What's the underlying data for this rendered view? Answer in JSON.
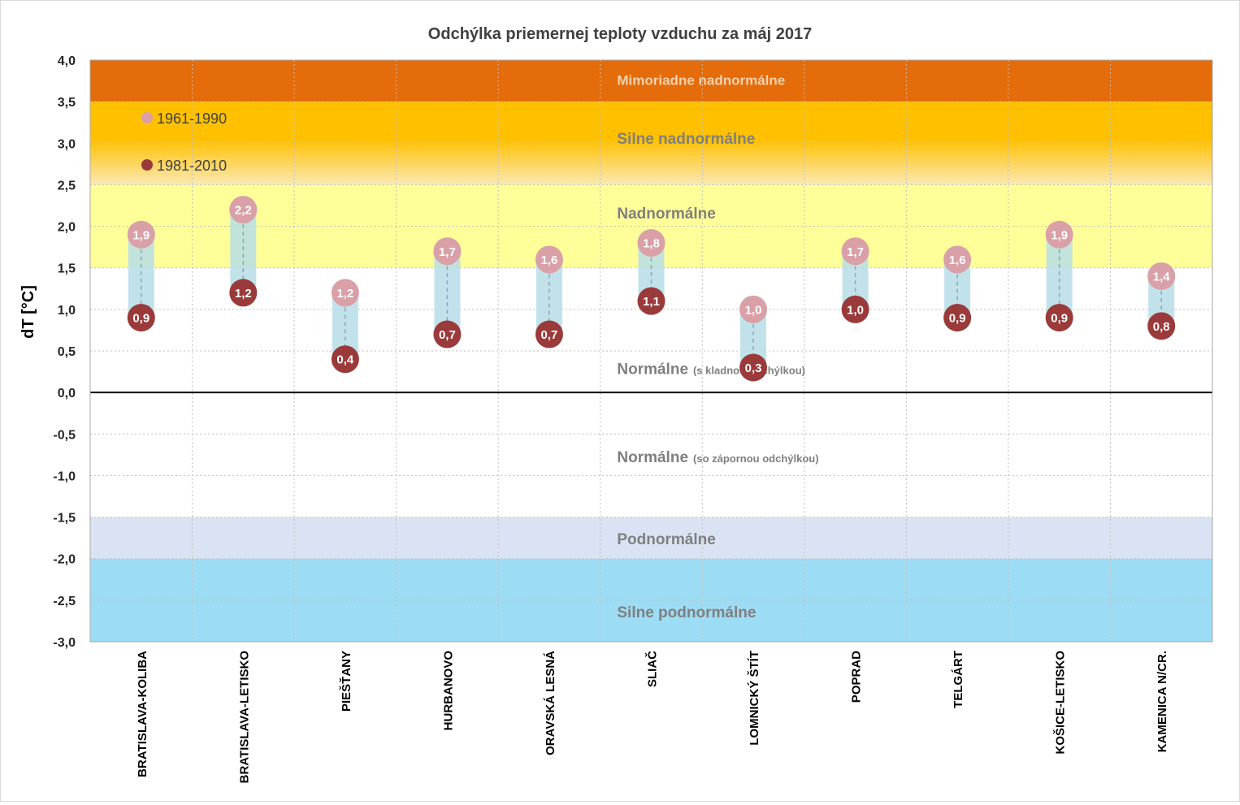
{
  "chart_data": {
    "type": "dot-range",
    "title": "Odchýlka priemernej teploty vzduchu za máj 2017",
    "ylabel": "dT [°C]",
    "xlabel": "",
    "ylim": [
      -3.0,
      4.0
    ],
    "ytick_step": 0.5,
    "ytick_labels": [
      "4,0",
      "3,5",
      "3,0",
      "2,5",
      "2,0",
      "1,5",
      "1,0",
      "0,5",
      "0,0",
      "-0,5",
      "-1,0",
      "-1,5",
      "-2,0",
      "-2,5",
      "-3,0"
    ],
    "grid": true,
    "legend_position": "top-left",
    "categories": [
      "BRATISLAVA-KOLIBA",
      "BRATISLAVA-LETISKO",
      "PIEŠŤANY",
      "HURBANOVO",
      "ORAVSKÁ LESNÁ",
      "SLIAČ",
      "LOMNICKÝ ŠTÍT",
      "POPRAD",
      "TELGÁRT",
      "KOŠICE-LETISKO",
      "KAMENICA N/CR."
    ],
    "series": [
      {
        "name": "1961-1990",
        "color": "#d9a0a8",
        "values": [
          1.9,
          2.2,
          1.2,
          1.7,
          1.6,
          1.8,
          1.0,
          1.7,
          1.6,
          1.9,
          1.4
        ],
        "labels": [
          "1,9",
          "2,2",
          "1,2",
          "1,7",
          "1,6",
          "1,8",
          "1,0",
          "1,7",
          "1,6",
          "1,9",
          "1,4"
        ]
      },
      {
        "name": "1981-2010",
        "color": "#9a3a3a",
        "values": [
          0.9,
          1.2,
          0.4,
          0.7,
          0.7,
          1.1,
          0.3,
          1.0,
          0.9,
          0.9,
          0.8
        ],
        "labels": [
          "0,9",
          "1,2",
          "0,4",
          "0,7",
          "0,7",
          "1,1",
          "0,3",
          "1,0",
          "0,9",
          "0,9",
          "0,8"
        ]
      }
    ],
    "zones": [
      {
        "name": "Mimoriadne nadnormálne",
        "note": "",
        "from": 3.5,
        "to": 4.0,
        "color": "#e46c0a",
        "text_color": "#f6d2b0",
        "label_at": 3.76
      },
      {
        "name": "Silne nadnormálne",
        "note": "",
        "from": 2.5,
        "to": 3.5,
        "color": "#ffc000",
        "color_bottom": "#fbe8b3",
        "text_color": "#7f7f7f",
        "label_at": 3.05
      },
      {
        "name": "Nadnormálne",
        "note": "",
        "from": 1.5,
        "to": 2.5,
        "color": "#ffff99",
        "text_color": "#7f7f7f",
        "label_at": 2.15
      },
      {
        "name": "Normálne",
        "note": "(s kladnou odchýlkou)",
        "from": 0.0,
        "to": 1.5,
        "color": "#ffffff",
        "text_color": "#7f7f7f",
        "label_at": 0.28
      },
      {
        "name": "Normálne",
        "note": "(so zápornou odchýlkou)",
        "from": -1.5,
        "to": 0.0,
        "color": "#ffffff",
        "text_color": "#7f7f7f",
        "label_at": -0.78
      },
      {
        "name": "Podnormálne",
        "note": "",
        "from": -2.0,
        "to": -1.5,
        "color": "#dae3f3",
        "text_color": "#7f7f7f",
        "label_at": -1.77
      },
      {
        "name": "Silne podnormálne",
        "note": "",
        "from": -3.0,
        "to": -2.0,
        "color": "#9ddcf5",
        "text_color": "#7f7f7f",
        "label_at": -2.65
      }
    ],
    "range_bar_color": "#b7dde8"
  }
}
